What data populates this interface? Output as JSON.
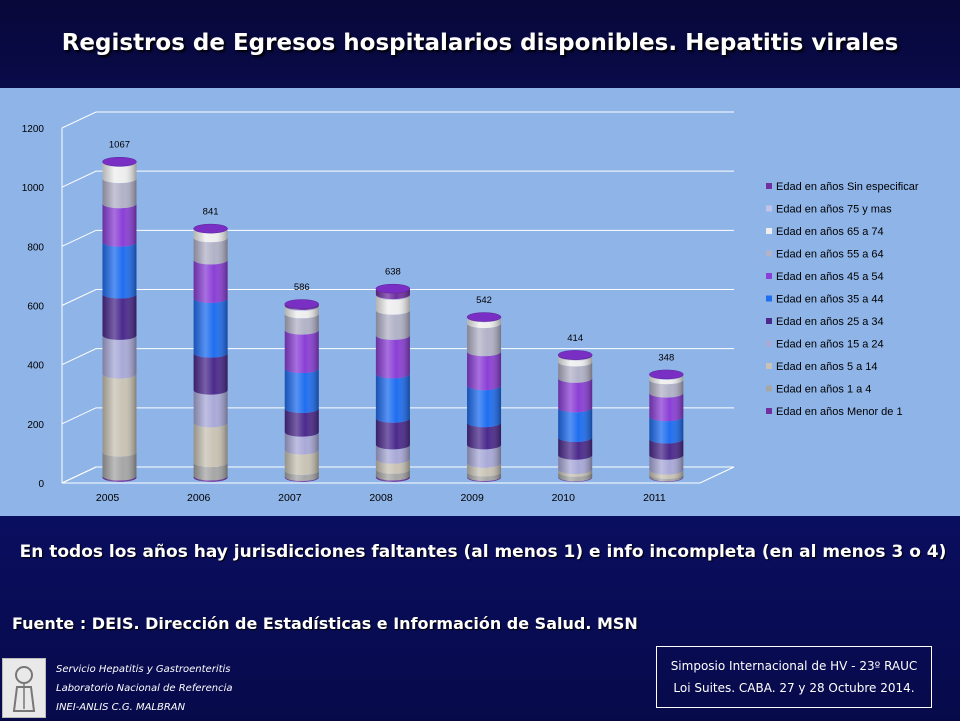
{
  "title": "Registros de Egresos hospitalarios disponibles.  Hepatitis virales",
  "note": "En todos los años hay jurisdicciones faltantes (al menos 1) e info incompleta (en al menos 3 o 4)",
  "source": "Fuente : DEIS. Dirección de Estadísticas  e Información de Salud. MSN",
  "org": {
    "line1": "Servicio Hepatitis y Gastroenteritis",
    "line2": "Laboratorio Nacional de Referencia",
    "line3": "INEI-ANLIS C.G. MALBRAN"
  },
  "event": {
    "line1": "Simposio Internacional de HV - 23º RAUC",
    "line2": "Loi Suites. CABA.  27 y 28  Octubre 2014."
  },
  "chart_data": {
    "type": "bar",
    "stacked": true,
    "categories": [
      "2005",
      "2006",
      "2007",
      "2008",
      "2009",
      "2010",
      "2011"
    ],
    "ylim": [
      0,
      1200
    ],
    "yticks": [
      0,
      200,
      400,
      600,
      800,
      1000,
      1200
    ],
    "totals": [
      1067,
      841,
      586,
      638,
      542,
      414,
      348
    ],
    "legend_position": "right",
    "series": [
      {
        "name": "Edad en años Menor de 1",
        "color": "#7030a0",
        "values": [
          5,
          5,
          3,
          5,
          3,
          2,
          2
        ]
      },
      {
        "name": "Edad en años 1 a 4",
        "color": "#a6a6a6",
        "values": [
          80,
          45,
          20,
          22,
          15,
          15,
          8
        ]
      },
      {
        "name": "Edad en años 5 a 14",
        "color": "#c9c3b5",
        "values": [
          265,
          135,
          70,
          35,
          30,
          10,
          15
        ]
      },
      {
        "name": "Edad en años 15 a 24",
        "color": "#a9a9d8",
        "values": [
          130,
          110,
          60,
          48,
          62,
          48,
          50
        ]
      },
      {
        "name": "Edad en años 25 a 34",
        "color": "#4b2a8c",
        "values": [
          140,
          125,
          80,
          90,
          75,
          60,
          55
        ]
      },
      {
        "name": "Edad en años 35 a 44",
        "color": "#1f6ef0",
        "values": [
          175,
          185,
          135,
          150,
          125,
          100,
          75
        ]
      },
      {
        "name": "Edad en años 45 a 54",
        "color": "#8b3fd6",
        "values": [
          130,
          130,
          130,
          130,
          115,
          100,
          80
        ]
      },
      {
        "name": "Edad en años 55 a 64",
        "color": "#b2b2c8",
        "values": [
          85,
          75,
          55,
          85,
          95,
          55,
          45
        ]
      },
      {
        "name": "Edad en años 65 a 74",
        "color": "#eeeeee",
        "values": [
          55,
          30,
          25,
          50,
          20,
          20,
          15
        ]
      },
      {
        "name": "Edad en años 75 y mas",
        "color": "#c3c3ea",
        "values": [
          2,
          1,
          3,
          3,
          2,
          2,
          3
        ]
      },
      {
        "name": "Edad en años Sin especificar",
        "color": "#7030a0",
        "values": [
          0,
          0,
          5,
          20,
          0,
          2,
          0
        ]
      }
    ]
  }
}
